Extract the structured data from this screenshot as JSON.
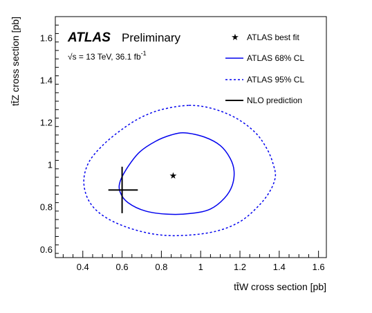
{
  "colors": {
    "contour": "#0000ee",
    "axis": "#000000",
    "marker": "#000000"
  },
  "header": {
    "atlas": "ATLAS",
    "preliminary": "Preliminary",
    "energy_prefix": "√s = 13 TeV,  36.1 fb",
    "energy_sup": "-1"
  },
  "chart_data": {
    "type": "scatter",
    "xlabel": "tt̄W cross section [pb]",
    "ylabel": "tt̄Z cross section [pb]",
    "xlim": [
      0.26,
      1.64
    ],
    "ylim": [
      0.56,
      1.7
    ],
    "x_ticks": [
      0.4,
      0.6,
      0.8,
      1.0,
      1.2,
      1.4,
      1.6
    ],
    "x_tick_labels": [
      "0.4",
      "0.6",
      "0.8",
      "1",
      "1.2",
      "1.4",
      "1.6"
    ],
    "y_ticks": [
      0.6,
      0.8,
      1.0,
      1.2,
      1.4,
      1.6
    ],
    "y_tick_labels": [
      "0.6",
      "0.8",
      "1",
      "1.2",
      "1.4",
      "1.6"
    ],
    "grid": false,
    "legend_position": "top-right",
    "legend": [
      {
        "label": "ATLAS best fit",
        "style": "star"
      },
      {
        "label": "ATLAS 68% CL",
        "style": "solid-line"
      },
      {
        "label": "ATLAS 95% CL",
        "style": "dashed-line"
      },
      {
        "label": "NLO prediction",
        "style": "black-cross"
      }
    ],
    "best_fit": {
      "x": 0.86,
      "y": 0.95
    },
    "nlo_prediction": {
      "x": 0.6,
      "y": 0.88,
      "x_err": [
        0.53,
        0.68
      ],
      "y_err": [
        0.77,
        0.99
      ]
    },
    "series": [
      {
        "name": "ATLAS 68% CL",
        "style": "solid",
        "points": [
          [
            0.92,
            1.15
          ],
          [
            1.02,
            1.13
          ],
          [
            1.1,
            1.09
          ],
          [
            1.15,
            1.03
          ],
          [
            1.17,
            0.97
          ],
          [
            1.16,
            0.9
          ],
          [
            1.12,
            0.84
          ],
          [
            1.05,
            0.79
          ],
          [
            0.96,
            0.77
          ],
          [
            0.84,
            0.765
          ],
          [
            0.72,
            0.78
          ],
          [
            0.63,
            0.82
          ],
          [
            0.59,
            0.87
          ],
          [
            0.59,
            0.92
          ],
          [
            0.63,
            0.99
          ],
          [
            0.69,
            1.06
          ],
          [
            0.77,
            1.11
          ],
          [
            0.85,
            1.14
          ],
          [
            0.92,
            1.15
          ]
        ]
      },
      {
        "name": "ATLAS 95% CL",
        "style": "dashed",
        "points": [
          [
            0.94,
            1.28
          ],
          [
            1.06,
            1.265
          ],
          [
            1.18,
            1.22
          ],
          [
            1.28,
            1.15
          ],
          [
            1.34,
            1.07
          ],
          [
            1.37,
            1.0
          ],
          [
            1.38,
            0.94
          ],
          [
            1.35,
            0.87
          ],
          [
            1.29,
            0.8
          ],
          [
            1.2,
            0.73
          ],
          [
            1.08,
            0.685
          ],
          [
            0.92,
            0.665
          ],
          [
            0.77,
            0.67
          ],
          [
            0.62,
            0.705
          ],
          [
            0.5,
            0.76
          ],
          [
            0.43,
            0.83
          ],
          [
            0.405,
            0.92
          ],
          [
            0.43,
            1.01
          ],
          [
            0.5,
            1.09
          ],
          [
            0.59,
            1.16
          ],
          [
            0.69,
            1.22
          ],
          [
            0.8,
            1.26
          ],
          [
            0.94,
            1.28
          ]
        ]
      }
    ]
  }
}
